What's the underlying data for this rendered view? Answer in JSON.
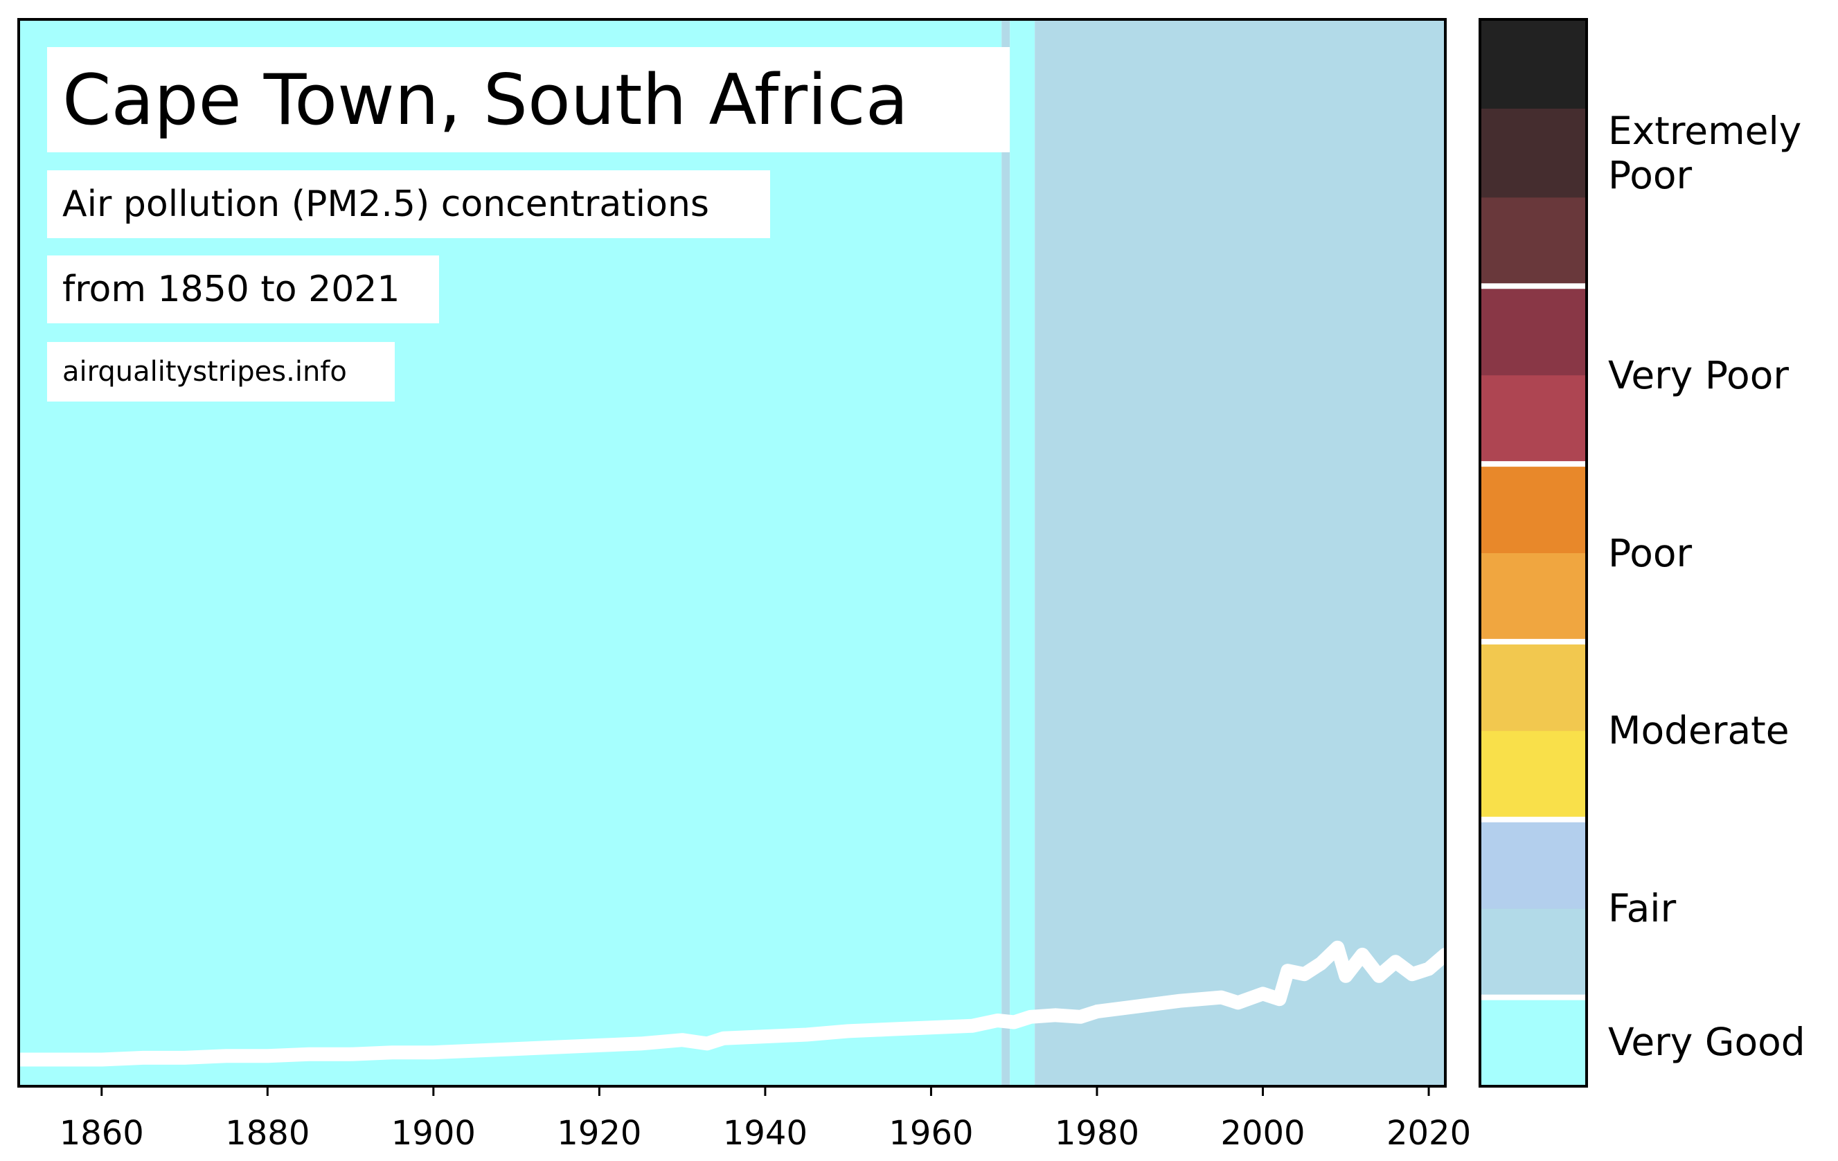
{
  "chart_data": {
    "type": "heatmap",
    "title": "Cape Town, South Africa",
    "subtitle": "Air pollution (PM2.5) concentrations",
    "date_range": "from 1850 to 2021",
    "source": "airqualitystripes.info",
    "xlim": [
      1850,
      2022
    ],
    "x_ticks": [
      1860,
      1880,
      1900,
      1920,
      1940,
      1960,
      1980,
      2000,
      2020
    ],
    "stripes": [
      {
        "start": 1850,
        "end": 1968.5,
        "category": "Very Good",
        "color": "#a6fffe"
      },
      {
        "start": 1968.5,
        "end": 1969.5,
        "category": "Fair",
        "color": "#b2dae8"
      },
      {
        "start": 1969.5,
        "end": 1972.5,
        "category": "Very Good",
        "color": "#a6fffe"
      },
      {
        "start": 1972.5,
        "end": 2022,
        "category": "Fair",
        "color": "#b2dae8"
      }
    ],
    "line": {
      "color": "#ffffff",
      "ylim": [
        0,
        60
      ],
      "x": [
        1850,
        1855,
        1860,
        1865,
        1870,
        1875,
        1880,
        1885,
        1890,
        1895,
        1900,
        1905,
        1910,
        1915,
        1920,
        1925,
        1930,
        1933,
        1935,
        1940,
        1945,
        1950,
        1955,
        1960,
        1965,
        1968,
        1970,
        1972,
        1975,
        1978,
        1980,
        1985,
        1990,
        1995,
        1997,
        2000,
        2002,
        2003,
        2005,
        2007,
        2009,
        2010,
        2012,
        2014,
        2016,
        2018,
        2020,
        2022
      ],
      "y": [
        1.5,
        1.5,
        1.5,
        1.6,
        1.6,
        1.7,
        1.7,
        1.8,
        1.8,
        1.9,
        1.9,
        2.0,
        2.1,
        2.2,
        2.3,
        2.4,
        2.6,
        2.4,
        2.7,
        2.8,
        2.9,
        3.1,
        3.2,
        3.3,
        3.4,
        3.7,
        3.6,
        3.9,
        4.0,
        3.9,
        4.2,
        4.5,
        4.8,
        5.0,
        4.7,
        5.2,
        4.9,
        6.5,
        6.3,
        6.9,
        7.8,
        6.2,
        7.4,
        6.2,
        7.0,
        6.3,
        6.6,
        7.4
      ]
    },
    "colorbar": {
      "categories": [
        {
          "name": "Very Good",
          "label": "Very Good",
          "colors": [
            "#a6fffe"
          ]
        },
        {
          "name": "Fair",
          "label": "Fair",
          "colors": [
            "#b2dae8",
            "#b3cfed"
          ]
        },
        {
          "name": "Moderate",
          "label": "Moderate",
          "colors": [
            "#f9e04a",
            "#f2c84f"
          ]
        },
        {
          "name": "Poor",
          "label": "Poor",
          "colors": [
            "#f0a640",
            "#e8882a"
          ]
        },
        {
          "name": "Very Poor",
          "label": "Very Poor",
          "colors": [
            "#ae4552",
            "#893746"
          ]
        },
        {
          "name": "Extremely Poor",
          "label": "Extremely\nPoor",
          "colors": [
            "#69383b",
            "#452d2f",
            "#222222"
          ]
        }
      ]
    }
  }
}
